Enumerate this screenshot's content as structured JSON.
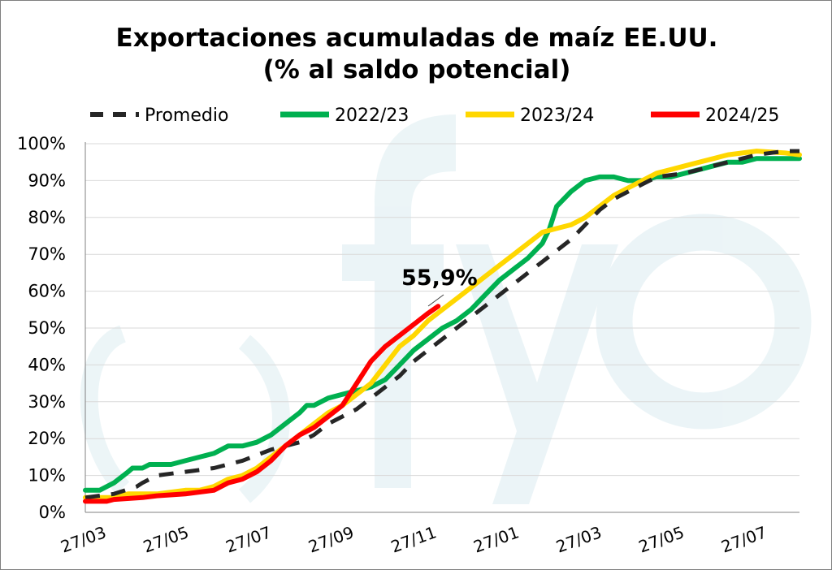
{
  "chart_data": {
    "type": "line",
    "title_line1": "Exportaciones acumuladas de maíz EE.UU.",
    "title_line2": "(% al saldo potencial)",
    "ylim": [
      0,
      100
    ],
    "y_ticks": [
      "0%",
      "10%",
      "20%",
      "30%",
      "40%",
      "50%",
      "60%",
      "70%",
      "80%",
      "90%",
      "100%"
    ],
    "x_ticks": [
      "27/03",
      "27/05",
      "27/07",
      "27/09",
      "27/11",
      "27/01",
      "27/03",
      "27/05",
      "27/07"
    ],
    "grid": "horizontal",
    "legend_position": "top",
    "watermark": "fyo",
    "annotation": "55,9%",
    "series": [
      {
        "name": "Promedio",
        "color": "#262626",
        "dashed": true,
        "points": [
          [
            0,
            4
          ],
          [
            2,
            5
          ],
          [
            3.6,
            7
          ],
          [
            4,
            8
          ],
          [
            5,
            10
          ],
          [
            7,
            11
          ],
          [
            9,
            12
          ],
          [
            11,
            14
          ],
          [
            13,
            17
          ],
          [
            15,
            19
          ],
          [
            16,
            21
          ],
          [
            17,
            24
          ],
          [
            18,
            26
          ],
          [
            19,
            28
          ],
          [
            20,
            31
          ],
          [
            21,
            34
          ],
          [
            22,
            37
          ],
          [
            23,
            41
          ],
          [
            24,
            44
          ],
          [
            25,
            47
          ],
          [
            26,
            50
          ],
          [
            27,
            53
          ],
          [
            28,
            56
          ],
          [
            29,
            59
          ],
          [
            30,
            62
          ],
          [
            31,
            65
          ],
          [
            32,
            68
          ],
          [
            33,
            71
          ],
          [
            34,
            74
          ],
          [
            35,
            78
          ],
          [
            36,
            82
          ],
          [
            37,
            85
          ],
          [
            38,
            87
          ],
          [
            39,
            89
          ],
          [
            40,
            91
          ],
          [
            42,
            92
          ],
          [
            43,
            93
          ],
          [
            44,
            94
          ],
          [
            45,
            95
          ],
          [
            46,
            96
          ],
          [
            47,
            97
          ],
          [
            49,
            98
          ],
          [
            50,
            98
          ]
        ]
      },
      {
        "name": "2022/23",
        "color": "#00b050",
        "dashed": false,
        "points": [
          [
            0,
            6
          ],
          [
            1,
            6
          ],
          [
            2,
            8
          ],
          [
            3,
            11
          ],
          [
            3.3,
            12
          ],
          [
            4,
            12
          ],
          [
            4.5,
            13
          ],
          [
            6,
            13
          ],
          [
            7,
            14
          ],
          [
            8,
            15
          ],
          [
            9,
            16
          ],
          [
            10,
            18
          ],
          [
            11,
            18
          ],
          [
            12,
            19
          ],
          [
            13,
            21
          ],
          [
            14,
            24
          ],
          [
            15,
            27
          ],
          [
            15.5,
            29
          ],
          [
            16,
            29
          ],
          [
            17,
            31
          ],
          [
            18,
            32
          ],
          [
            19,
            33
          ],
          [
            20,
            34
          ],
          [
            21,
            36
          ],
          [
            22,
            40
          ],
          [
            23,
            44
          ],
          [
            24,
            47
          ],
          [
            25,
            50
          ],
          [
            26,
            52
          ],
          [
            27,
            55
          ],
          [
            28,
            59
          ],
          [
            29,
            63
          ],
          [
            30,
            66
          ],
          [
            31,
            69
          ],
          [
            32,
            73
          ],
          [
            32.5,
            77
          ],
          [
            33,
            83
          ],
          [
            34,
            87
          ],
          [
            35,
            90
          ],
          [
            36,
            91
          ],
          [
            37,
            91
          ],
          [
            38,
            90
          ],
          [
            39,
            90
          ],
          [
            40,
            91
          ],
          [
            41,
            91
          ],
          [
            42,
            92
          ],
          [
            43,
            93
          ],
          [
            44,
            94
          ],
          [
            45,
            95
          ],
          [
            46,
            95
          ],
          [
            47,
            96
          ],
          [
            50,
            96
          ]
        ]
      },
      {
        "name": "2023/24",
        "color": "#ffd700",
        "dashed": false,
        "points": [
          [
            0,
            4
          ],
          [
            2,
            4
          ],
          [
            3,
            5
          ],
          [
            5,
            5
          ],
          [
            7,
            6
          ],
          [
            8,
            6
          ],
          [
            9,
            7
          ],
          [
            10,
            9
          ],
          [
            11,
            10
          ],
          [
            12,
            12
          ],
          [
            13,
            15
          ],
          [
            14,
            18
          ],
          [
            15,
            21
          ],
          [
            16,
            24
          ],
          [
            17,
            27
          ],
          [
            18,
            29
          ],
          [
            19,
            32
          ],
          [
            20,
            35
          ],
          [
            21,
            40
          ],
          [
            22,
            45
          ],
          [
            23,
            48
          ],
          [
            24,
            52
          ],
          [
            25,
            55
          ],
          [
            26,
            58
          ],
          [
            27,
            61
          ],
          [
            28,
            64
          ],
          [
            29,
            67
          ],
          [
            30,
            70
          ],
          [
            31,
            73
          ],
          [
            32,
            76
          ],
          [
            33,
            77
          ],
          [
            34,
            78
          ],
          [
            35,
            80
          ],
          [
            36,
            83
          ],
          [
            37,
            86
          ],
          [
            38,
            88
          ],
          [
            39,
            90
          ],
          [
            40,
            92
          ],
          [
            41,
            93
          ],
          [
            42,
            94
          ],
          [
            43,
            95
          ],
          [
            44,
            96
          ],
          [
            45,
            97
          ],
          [
            46,
            97.5
          ],
          [
            47,
            98
          ],
          [
            49,
            97.5
          ],
          [
            50,
            97
          ]
        ]
      },
      {
        "name": "2024/25",
        "color": "#ff0000",
        "dashed": false,
        "points": [
          [
            0,
            3
          ],
          [
            1.5,
            3
          ],
          [
            2,
            3.5
          ],
          [
            4,
            4
          ],
          [
            5,
            4.5
          ],
          [
            7,
            5
          ],
          [
            8,
            5.5
          ],
          [
            9,
            6
          ],
          [
            10,
            8
          ],
          [
            11,
            9
          ],
          [
            12,
            11
          ],
          [
            13,
            14
          ],
          [
            14,
            18
          ],
          [
            15,
            21
          ],
          [
            16,
            23
          ],
          [
            17,
            26
          ],
          [
            18,
            29
          ],
          [
            19,
            35
          ],
          [
            20,
            41
          ],
          [
            21,
            45
          ],
          [
            22,
            48
          ],
          [
            23,
            51
          ],
          [
            24,
            54
          ],
          [
            24.7,
            55.9
          ]
        ]
      }
    ]
  }
}
